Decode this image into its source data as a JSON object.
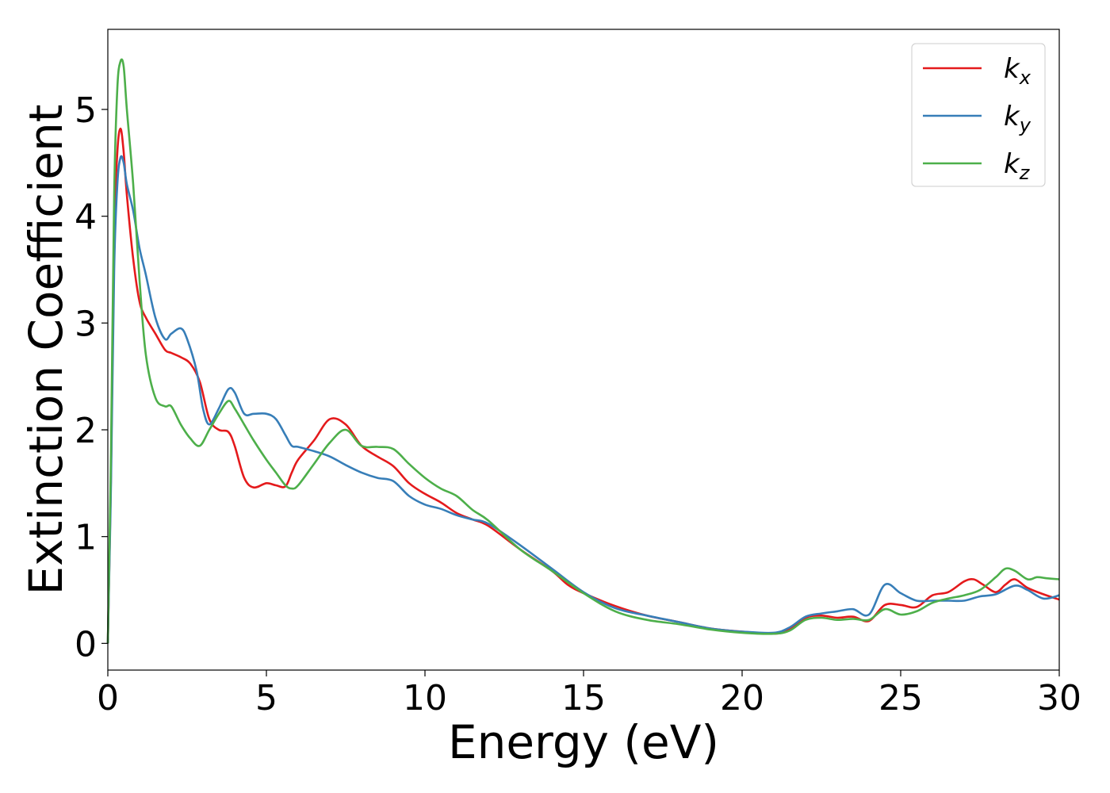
{
  "chart_data": {
    "type": "line",
    "title": "",
    "xlabel": "Energy (eV)",
    "ylabel": "Extinction Coefficient",
    "xlim": [
      0,
      30
    ],
    "ylim": [
      -0.25,
      5.75
    ],
    "xticks": [
      0,
      5,
      10,
      15,
      20,
      25,
      30
    ],
    "yticks": [
      0,
      1,
      2,
      3,
      4,
      5
    ],
    "grid": false,
    "legend_position": "top-right",
    "series": [
      {
        "name": "k",
        "subscript": "x",
        "color": "#e41a1c",
        "x": [
          0,
          0.1,
          0.2,
          0.3,
          0.4,
          0.5,
          0.6,
          0.8,
          1.0,
          1.2,
          1.5,
          1.8,
          2.0,
          2.3,
          2.6,
          2.9,
          3.2,
          3.5,
          3.8,
          4.0,
          4.3,
          4.6,
          5.0,
          5.3,
          5.6,
          5.8,
          6.0,
          6.5,
          7.0,
          7.5,
          8.0,
          8.5,
          9.0,
          9.5,
          10.0,
          10.5,
          11.0,
          11.5,
          12.0,
          13.0,
          14.0,
          14.5,
          15.0,
          16.0,
          17.0,
          18.0,
          19.0,
          20.0,
          21.0,
          21.5,
          22.0,
          22.5,
          23.0,
          23.5,
          24.0,
          24.5,
          25.0,
          25.5,
          26.0,
          26.5,
          27.0,
          27.3,
          27.6,
          28.0,
          28.3,
          28.6,
          29.0,
          29.5,
          30.0
        ],
        "values": [
          0,
          1.6,
          3.8,
          4.6,
          4.82,
          4.6,
          4.2,
          3.6,
          3.2,
          3.05,
          2.9,
          2.75,
          2.72,
          2.68,
          2.62,
          2.45,
          2.1,
          2.0,
          1.98,
          1.85,
          1.55,
          1.46,
          1.5,
          1.48,
          1.47,
          1.6,
          1.72,
          1.9,
          2.1,
          2.05,
          1.85,
          1.75,
          1.66,
          1.5,
          1.4,
          1.32,
          1.22,
          1.16,
          1.1,
          0.88,
          0.68,
          0.55,
          0.47,
          0.35,
          0.26,
          0.2,
          0.14,
          0.11,
          0.09,
          0.13,
          0.24,
          0.26,
          0.24,
          0.25,
          0.21,
          0.36,
          0.36,
          0.34,
          0.45,
          0.48,
          0.58,
          0.6,
          0.55,
          0.48,
          0.55,
          0.6,
          0.52,
          0.46,
          0.41
        ]
      },
      {
        "name": "k",
        "subscript": "y",
        "color": "#377eb8",
        "x": [
          0,
          0.1,
          0.2,
          0.3,
          0.4,
          0.5,
          0.6,
          0.8,
          1.0,
          1.2,
          1.5,
          1.8,
          2.0,
          2.3,
          2.5,
          2.8,
          3.0,
          3.2,
          3.5,
          3.8,
          4.0,
          4.3,
          4.6,
          5.0,
          5.3,
          5.6,
          5.8,
          6.0,
          6.5,
          7.0,
          7.5,
          8.0,
          8.5,
          9.0,
          9.5,
          10.0,
          10.5,
          11.0,
          11.5,
          12.0,
          13.0,
          14.0,
          15.0,
          16.0,
          17.0,
          18.0,
          19.0,
          20.0,
          21.0,
          21.5,
          22.0,
          22.5,
          23.0,
          23.5,
          24.0,
          24.5,
          25.0,
          25.5,
          26.0,
          26.5,
          27.0,
          27.5,
          28.0,
          28.6,
          29.0,
          29.5,
          30.0
        ],
        "values": [
          0,
          1.5,
          3.5,
          4.3,
          4.55,
          4.5,
          4.3,
          4.05,
          3.7,
          3.45,
          3.05,
          2.85,
          2.9,
          2.95,
          2.85,
          2.55,
          2.2,
          2.05,
          2.2,
          2.38,
          2.35,
          2.15,
          2.15,
          2.15,
          2.1,
          1.95,
          1.85,
          1.84,
          1.8,
          1.75,
          1.67,
          1.6,
          1.55,
          1.52,
          1.38,
          1.3,
          1.26,
          1.2,
          1.16,
          1.12,
          0.92,
          0.7,
          0.48,
          0.33,
          0.26,
          0.2,
          0.14,
          0.11,
          0.1,
          0.15,
          0.25,
          0.28,
          0.3,
          0.32,
          0.27,
          0.55,
          0.47,
          0.4,
          0.4,
          0.4,
          0.4,
          0.44,
          0.46,
          0.54,
          0.5,
          0.42,
          0.45
        ]
      },
      {
        "name": "k",
        "subscript": "z",
        "color": "#4daf4a",
        "x": [
          0,
          0.1,
          0.2,
          0.3,
          0.4,
          0.5,
          0.6,
          0.8,
          1.0,
          1.2,
          1.5,
          1.8,
          2.0,
          2.3,
          2.6,
          2.9,
          3.2,
          3.5,
          3.8,
          4.0,
          4.3,
          4.6,
          5.0,
          5.3,
          5.6,
          5.8,
          6.0,
          6.5,
          7.0,
          7.5,
          8.0,
          8.5,
          9.0,
          9.5,
          10.0,
          10.5,
          11.0,
          11.5,
          12.0,
          13.0,
          14.0,
          15.0,
          16.0,
          17.0,
          18.0,
          19.0,
          20.0,
          21.0,
          21.5,
          22.0,
          22.5,
          23.0,
          23.5,
          24.0,
          24.5,
          25.0,
          25.5,
          26.0,
          26.5,
          27.0,
          27.5,
          28.0,
          28.3,
          28.6,
          29.0,
          29.3,
          29.6,
          30.0
        ],
        "values": [
          0,
          1.8,
          4.2,
          5.2,
          5.45,
          5.4,
          5.0,
          4.3,
          3.4,
          2.7,
          2.3,
          2.22,
          2.22,
          2.05,
          1.92,
          1.85,
          2.0,
          2.15,
          2.27,
          2.2,
          2.05,
          1.9,
          1.72,
          1.6,
          1.48,
          1.45,
          1.48,
          1.68,
          1.88,
          2.0,
          1.85,
          1.84,
          1.82,
          1.68,
          1.55,
          1.45,
          1.38,
          1.25,
          1.15,
          0.88,
          0.68,
          0.47,
          0.3,
          0.22,
          0.18,
          0.13,
          0.1,
          0.09,
          0.12,
          0.22,
          0.24,
          0.22,
          0.23,
          0.22,
          0.32,
          0.27,
          0.3,
          0.38,
          0.42,
          0.45,
          0.5,
          0.62,
          0.7,
          0.68,
          0.6,
          0.62,
          0.61,
          0.6
        ]
      }
    ]
  }
}
